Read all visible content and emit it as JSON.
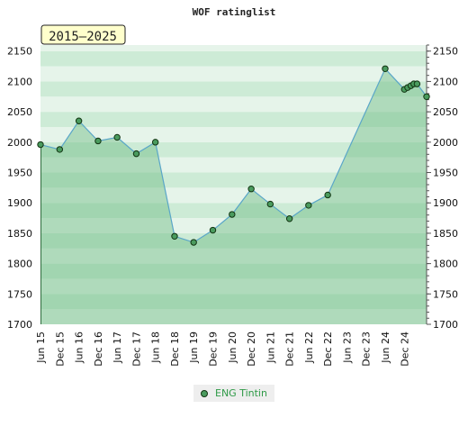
{
  "chart_data": {
    "type": "area",
    "title": "WOF ratinglist",
    "period_label": "2015–2025",
    "ylim": [
      1700,
      2160
    ],
    "yticks": [
      1700,
      1750,
      1800,
      1850,
      1900,
      1950,
      2000,
      2050,
      2100,
      2150
    ],
    "xlim": [
      "2015-06-01",
      "2025-07-01"
    ],
    "categories": [
      "Jun 15",
      "Dec 15",
      "Jun 16",
      "Dec 16",
      "Jun 17",
      "Dec 17",
      "Jun 18",
      "Dec 18",
      "Jun 19",
      "Dec 19",
      "Jun 20",
      "Dec 20",
      "Jun 21",
      "Dec 21",
      "Jun 22",
      "Dec 22",
      "Jun 23",
      "Dec 23",
      "Jun 24",
      "Dec 24"
    ],
    "category_dates": [
      "2015-06-01",
      "2015-12-01",
      "2016-06-01",
      "2016-12-01",
      "2017-06-01",
      "2017-12-01",
      "2018-06-01",
      "2018-12-01",
      "2019-06-01",
      "2019-12-01",
      "2020-06-01",
      "2020-12-01",
      "2021-06-01",
      "2021-12-01",
      "2022-06-01",
      "2022-12-01",
      "2023-06-01",
      "2023-12-01",
      "2024-06-01",
      "2024-12-01"
    ],
    "series": [
      {
        "name": "ENG Tintin",
        "color": "#4a9b5e",
        "points": [
          {
            "x": "2015-06-01",
            "y": 1996
          },
          {
            "x": "2015-12-01",
            "y": 1988
          },
          {
            "x": "2016-06-01",
            "y": 2035
          },
          {
            "x": "2016-12-01",
            "y": 2002
          },
          {
            "x": "2017-06-01",
            "y": 2008
          },
          {
            "x": "2017-12-01",
            "y": 1981
          },
          {
            "x": "2018-06-01",
            "y": 2000
          },
          {
            "x": "2018-12-01",
            "y": 1845
          },
          {
            "x": "2019-06-01",
            "y": 1835
          },
          {
            "x": "2019-12-01",
            "y": 1855
          },
          {
            "x": "2020-06-01",
            "y": 1881
          },
          {
            "x": "2020-12-01",
            "y": 1923
          },
          {
            "x": "2021-06-01",
            "y": 1898
          },
          {
            "x": "2021-12-01",
            "y": 1874
          },
          {
            "x": "2022-06-01",
            "y": 1896
          },
          {
            "x": "2022-12-01",
            "y": 1913
          },
          {
            "x": "2024-06-01",
            "y": 2121
          },
          {
            "x": "2024-12-01",
            "y": 2087
          },
          {
            "x": "2025-01-01",
            "y": 2090
          },
          {
            "x": "2025-02-01",
            "y": 2093
          },
          {
            "x": "2025-03-01",
            "y": 2096
          },
          {
            "x": "2025-04-01",
            "y": 2096
          },
          {
            "x": "2025-07-01",
            "y": 2075
          }
        ]
      }
    ],
    "grid": true,
    "legend_position": "bottom",
    "colors": {
      "band_light": "#e6f4ea",
      "band_dark": "#cdebd6",
      "area_fill": "#6dbb83",
      "line": "#5aa6c8",
      "marker": "#4a9b5e",
      "label_bg": "#ffffcc"
    }
  }
}
